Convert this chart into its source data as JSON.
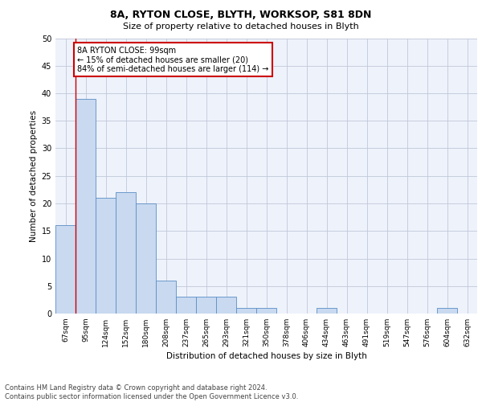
{
  "title1": "8A, RYTON CLOSE, BLYTH, WORKSOP, S81 8DN",
  "title2": "Size of property relative to detached houses in Blyth",
  "xlabel": "Distribution of detached houses by size in Blyth",
  "ylabel": "Number of detached properties",
  "footer1": "Contains HM Land Registry data © Crown copyright and database right 2024.",
  "footer2": "Contains public sector information licensed under the Open Government Licence v3.0.",
  "annotation_title": "8A RYTON CLOSE: 99sqm",
  "annotation_line2": "← 15% of detached houses are smaller (20)",
  "annotation_line3": "84% of semi-detached houses are larger (114) →",
  "bar_labels": [
    "67sqm",
    "95sqm",
    "124sqm",
    "152sqm",
    "180sqm",
    "208sqm",
    "237sqm",
    "265sqm",
    "293sqm",
    "321sqm",
    "350sqm",
    "378sqm",
    "406sqm",
    "434sqm",
    "463sqm",
    "491sqm",
    "519sqm",
    "547sqm",
    "576sqm",
    "604sqm",
    "632sqm"
  ],
  "bar_values": [
    16,
    39,
    21,
    22,
    20,
    6,
    3,
    3,
    3,
    1,
    1,
    0,
    0,
    1,
    0,
    0,
    0,
    0,
    0,
    1,
    0
  ],
  "bar_color": "#c8d9f0",
  "bar_edge_color": "#5b8ec4",
  "grid_color": "#c0c8d8",
  "marker_color": "#cc0000",
  "ylim": [
    0,
    50
  ],
  "yticks": [
    0,
    5,
    10,
    15,
    20,
    25,
    30,
    35,
    40,
    45,
    50
  ],
  "annotation_box_color": "#ffffff",
  "annotation_box_edge_color": "#cc0000",
  "bg_color": "#eef2fb"
}
